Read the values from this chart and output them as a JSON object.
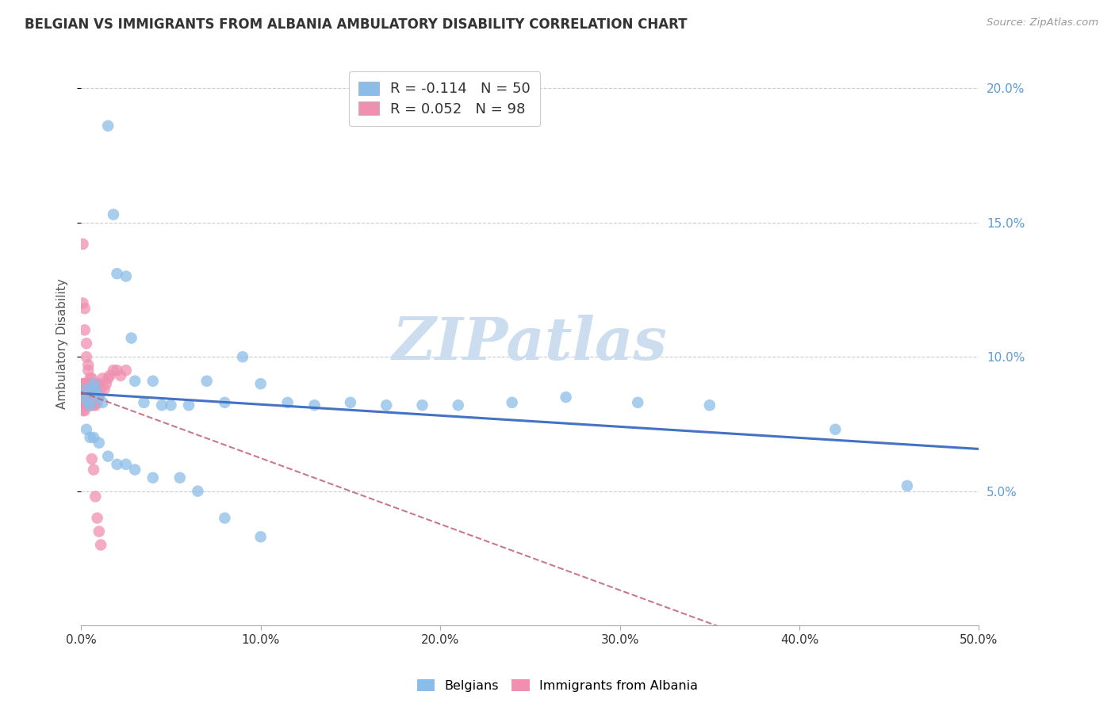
{
  "title": "BELGIAN VS IMMIGRANTS FROM ALBANIA AMBULATORY DISABILITY CORRELATION CHART",
  "source": "Source: ZipAtlas.com",
  "ylabel": "Ambulatory Disability",
  "xlim": [
    0.0,
    0.5
  ],
  "ylim": [
    0.0,
    0.21
  ],
  "yticks": [
    0.05,
    0.1,
    0.15,
    0.2
  ],
  "ytick_labels": [
    "5.0%",
    "10.0%",
    "15.0%",
    "20.0%"
  ],
  "xticks": [
    0.0,
    0.1,
    0.2,
    0.3,
    0.4,
    0.5
  ],
  "xtick_labels": [
    "0.0%",
    "10.0%",
    "20.0%",
    "30.0%",
    "40.0%",
    "50.0%"
  ],
  "blue_color": "#8bbde8",
  "pink_color": "#f090b0",
  "trend_blue_color": "#4472c4",
  "trend_pink_color": "#c0607a",
  "watermark": "ZIPatlas",
  "watermark_color": "#ccddf0",
  "legend1_label": "R = -0.114   N = 50",
  "legend2_label": "R = 0.052   N = 98",
  "bottom_legend1": "Belgians",
  "bottom_legend2": "Immigrants from Albania",
  "belgians_x": [
    0.002,
    0.003,
    0.004,
    0.005,
    0.006,
    0.007,
    0.008,
    0.009,
    0.01,
    0.012,
    0.015,
    0.018,
    0.02,
    0.025,
    0.028,
    0.03,
    0.035,
    0.04,
    0.045,
    0.05,
    0.06,
    0.07,
    0.08,
    0.09,
    0.1,
    0.115,
    0.13,
    0.15,
    0.17,
    0.19,
    0.21,
    0.24,
    0.27,
    0.31,
    0.35,
    0.42,
    0.46,
    0.003,
    0.005,
    0.007,
    0.01,
    0.015,
    0.02,
    0.025,
    0.03,
    0.04,
    0.055,
    0.065,
    0.08,
    0.1
  ],
  "belgians_y": [
    0.085,
    0.088,
    0.083,
    0.082,
    0.087,
    0.09,
    0.088,
    0.086,
    0.085,
    0.083,
    0.186,
    0.153,
    0.131,
    0.13,
    0.107,
    0.091,
    0.083,
    0.091,
    0.082,
    0.082,
    0.082,
    0.091,
    0.083,
    0.1,
    0.09,
    0.083,
    0.082,
    0.083,
    0.082,
    0.082,
    0.082,
    0.083,
    0.085,
    0.083,
    0.082,
    0.073,
    0.052,
    0.073,
    0.07,
    0.07,
    0.068,
    0.063,
    0.06,
    0.06,
    0.058,
    0.055,
    0.055,
    0.05,
    0.04,
    0.033
  ],
  "albania_x": [
    0.001,
    0.001,
    0.001,
    0.001,
    0.001,
    0.001,
    0.001,
    0.001,
    0.001,
    0.001,
    0.001,
    0.001,
    0.001,
    0.001,
    0.001,
    0.001,
    0.001,
    0.001,
    0.001,
    0.001,
    0.002,
    0.002,
    0.002,
    0.002,
    0.002,
    0.002,
    0.002,
    0.002,
    0.002,
    0.002,
    0.002,
    0.002,
    0.002,
    0.003,
    0.003,
    0.003,
    0.003,
    0.003,
    0.003,
    0.003,
    0.003,
    0.003,
    0.003,
    0.004,
    0.004,
    0.004,
    0.004,
    0.004,
    0.004,
    0.004,
    0.005,
    0.005,
    0.005,
    0.005,
    0.005,
    0.005,
    0.006,
    0.006,
    0.006,
    0.006,
    0.006,
    0.007,
    0.007,
    0.007,
    0.007,
    0.008,
    0.008,
    0.008,
    0.008,
    0.009,
    0.009,
    0.01,
    0.01,
    0.011,
    0.012,
    0.013,
    0.014,
    0.015,
    0.016,
    0.018,
    0.02,
    0.022,
    0.025,
    0.001,
    0.001,
    0.002,
    0.002,
    0.003,
    0.003,
    0.004,
    0.004,
    0.005,
    0.006,
    0.007,
    0.008,
    0.009,
    0.01,
    0.011
  ],
  "albania_y": [
    0.085,
    0.083,
    0.082,
    0.085,
    0.087,
    0.082,
    0.09,
    0.085,
    0.083,
    0.082,
    0.088,
    0.086,
    0.083,
    0.082,
    0.085,
    0.09,
    0.087,
    0.083,
    0.082,
    0.08,
    0.088,
    0.085,
    0.083,
    0.082,
    0.086,
    0.09,
    0.083,
    0.087,
    0.082,
    0.085,
    0.083,
    0.08,
    0.082,
    0.09,
    0.085,
    0.083,
    0.087,
    0.082,
    0.085,
    0.083,
    0.09,
    0.088,
    0.082,
    0.087,
    0.085,
    0.083,
    0.082,
    0.09,
    0.085,
    0.083,
    0.088,
    0.085,
    0.083,
    0.082,
    0.09,
    0.087,
    0.092,
    0.085,
    0.083,
    0.082,
    0.09,
    0.088,
    0.085,
    0.082,
    0.09,
    0.088,
    0.085,
    0.082,
    0.09,
    0.087,
    0.083,
    0.09,
    0.085,
    0.088,
    0.092,
    0.088,
    0.09,
    0.092,
    0.093,
    0.095,
    0.095,
    0.093,
    0.095,
    0.142,
    0.12,
    0.118,
    0.11,
    0.105,
    0.1,
    0.097,
    0.095,
    0.092,
    0.062,
    0.058,
    0.048,
    0.04,
    0.035,
    0.03
  ]
}
